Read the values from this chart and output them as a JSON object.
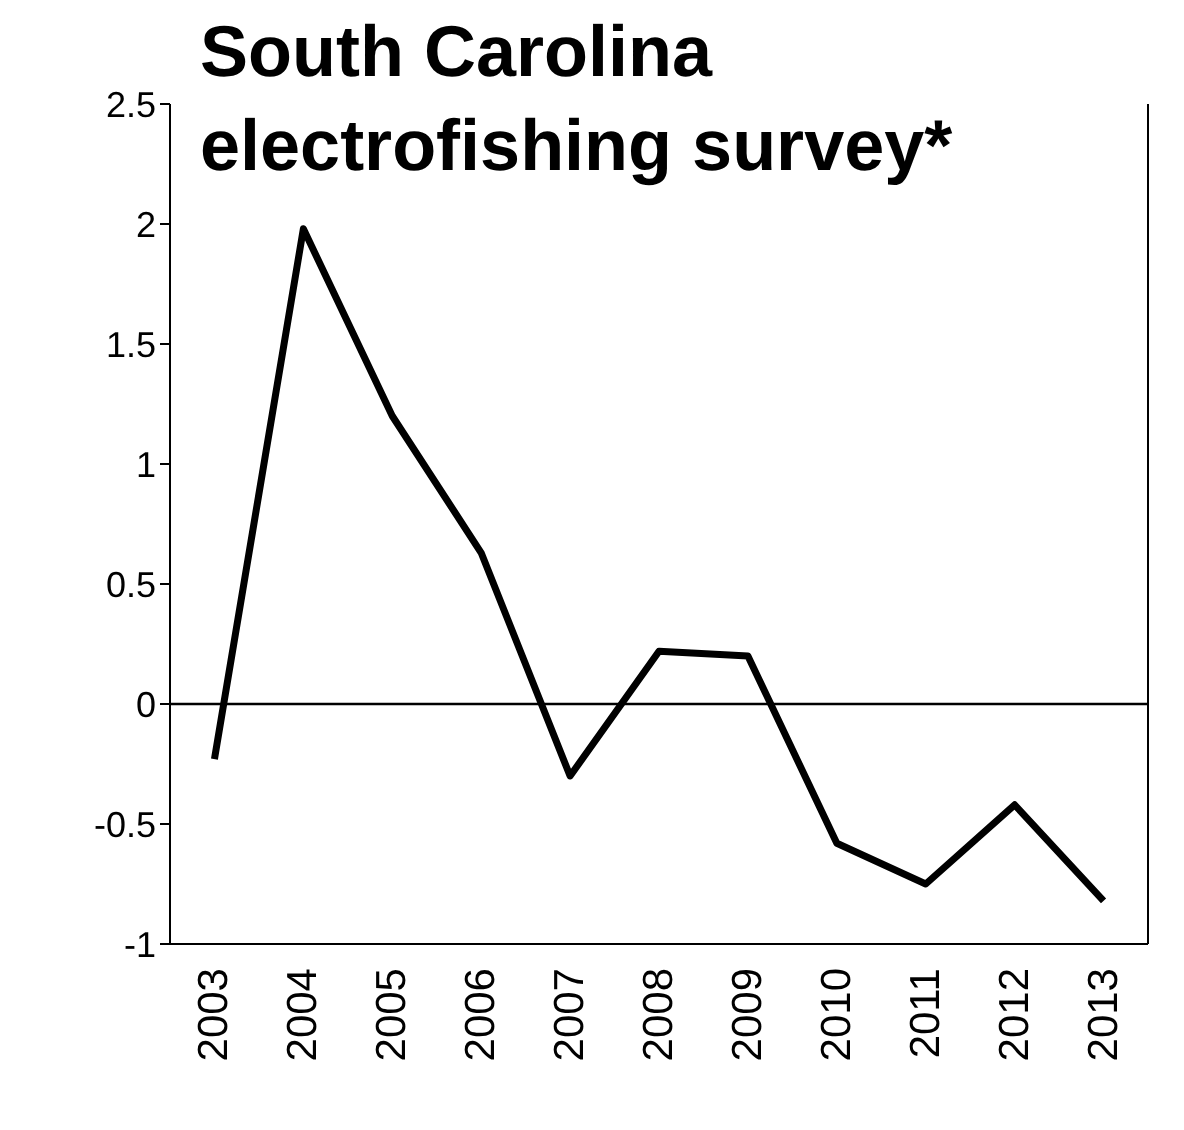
{
  "chart_data": {
    "type": "line",
    "title": "South Carolina electrofishing survey*",
    "categories": [
      "2003",
      "2004",
      "2005",
      "2006",
      "2007",
      "2008",
      "2009",
      "2010",
      "2011",
      "2012",
      "2013"
    ],
    "series": [
      {
        "color": "#000000",
        "values": [
          -0.23,
          1.98,
          1.2,
          0.63,
          -0.3,
          0.22,
          0.2,
          -0.58,
          -0.75,
          -0.42,
          -0.82
        ]
      }
    ],
    "ylim": [
      -1,
      2.5
    ],
    "yticks": [
      -1,
      -0.5,
      0,
      0.5,
      1,
      1.5,
      2,
      2.5
    ],
    "ref_lines": [
      {
        "axis": "y",
        "value": 0,
        "color": "#000000"
      }
    ],
    "grid": false,
    "legend": false,
    "marker": "none",
    "line_style": "solid"
  }
}
